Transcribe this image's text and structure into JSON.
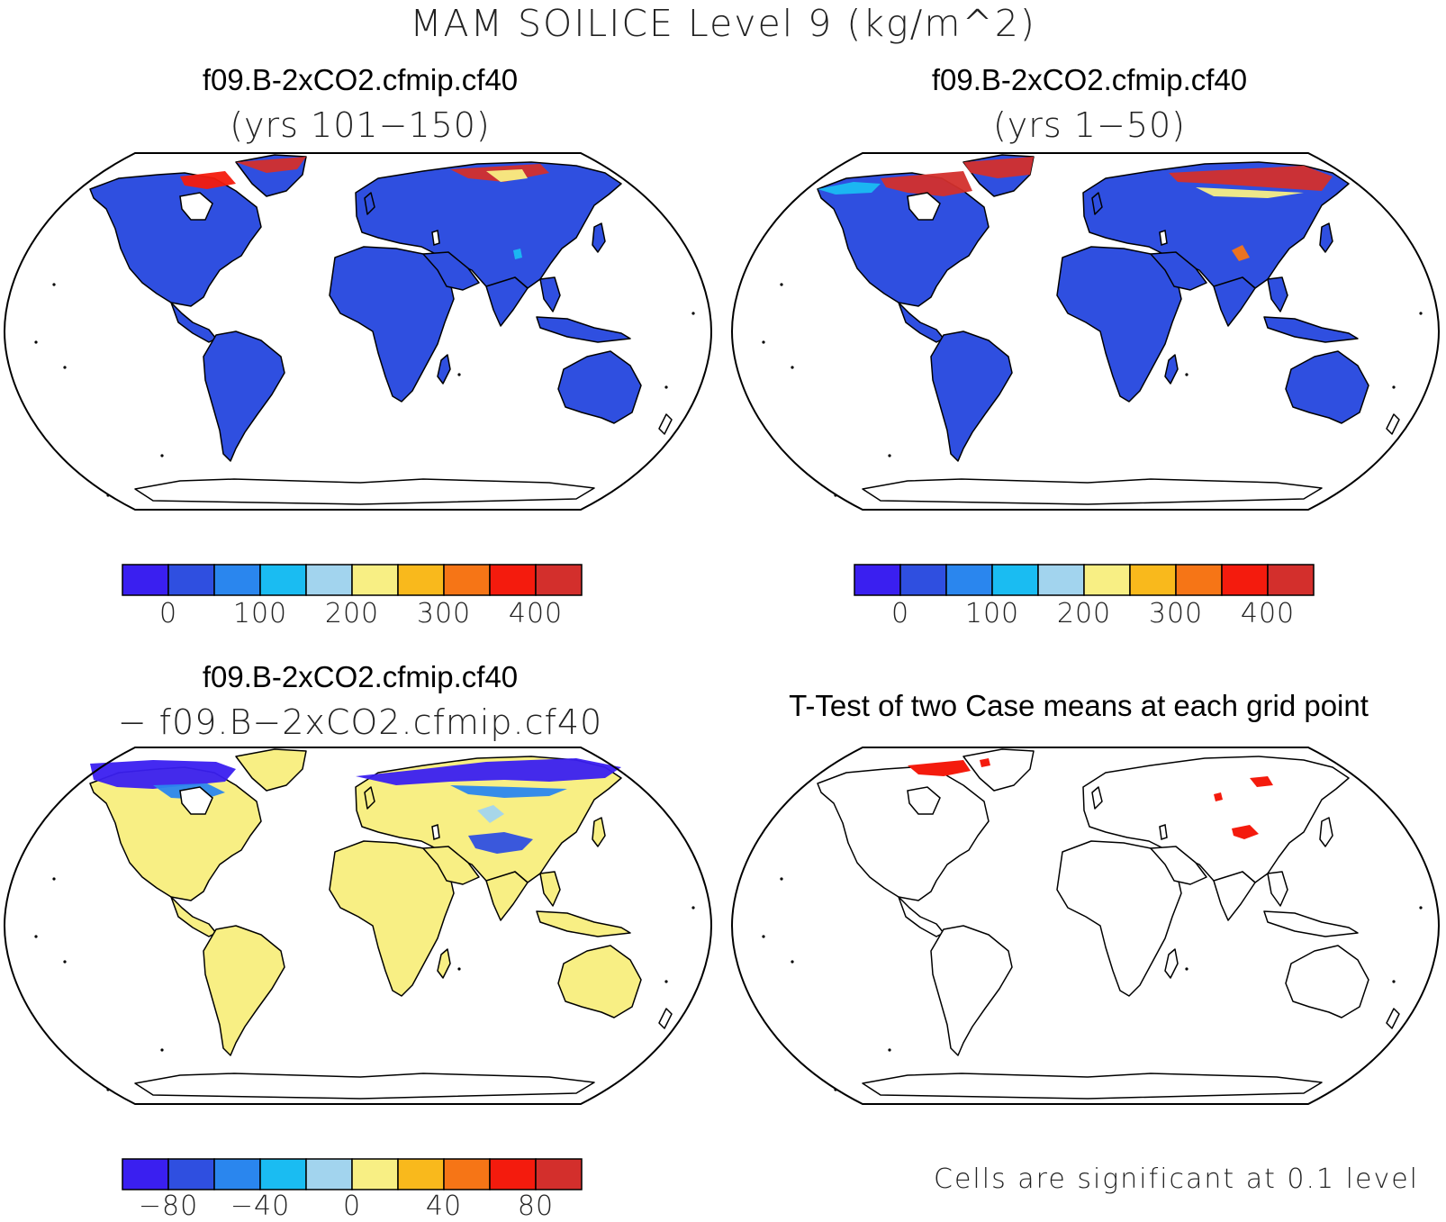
{
  "figure": {
    "title": "MAM SOILICE Level 9 (kg/m^2)"
  },
  "panels": [
    {
      "id": "case1",
      "title": "f09.B-2xCO2.cfmip.cf40",
      "subtitle": "(yrs 101−150)"
    },
    {
      "id": "case2",
      "title": "f09.B-2xCO2.cfmip.cf40",
      "subtitle": "(yrs 1−50)"
    },
    {
      "id": "difference",
      "title": "f09.B-2xCO2.cfmip.cf40",
      "subtitle": "− f09.B−2xCO2.cfmip.cf40"
    },
    {
      "id": "ttest",
      "title": "T-Test of two Case means at each grid point",
      "footnote": "Cells are significant at 0.1 level"
    }
  ],
  "colorbars": {
    "colors": [
      "#3a1ff0",
      "#2f4fe0",
      "#2a86ee",
      "#1abcf2",
      "#a2d4ee",
      "#f8ef84",
      "#f9b91c",
      "#f67516",
      "#f41b0d",
      "#d32f2c"
    ],
    "absolute_ticks": [
      "0",
      "100",
      "200",
      "300",
      "400"
    ],
    "difference_ticks": [
      "−80",
      "−40",
      "0",
      "40",
      "80"
    ]
  },
  "map_colors": {
    "land_case": "#2f4fe0",
    "land_difference": "#f8ef84",
    "significant": "#f41b0d",
    "coastline": "#000000"
  }
}
